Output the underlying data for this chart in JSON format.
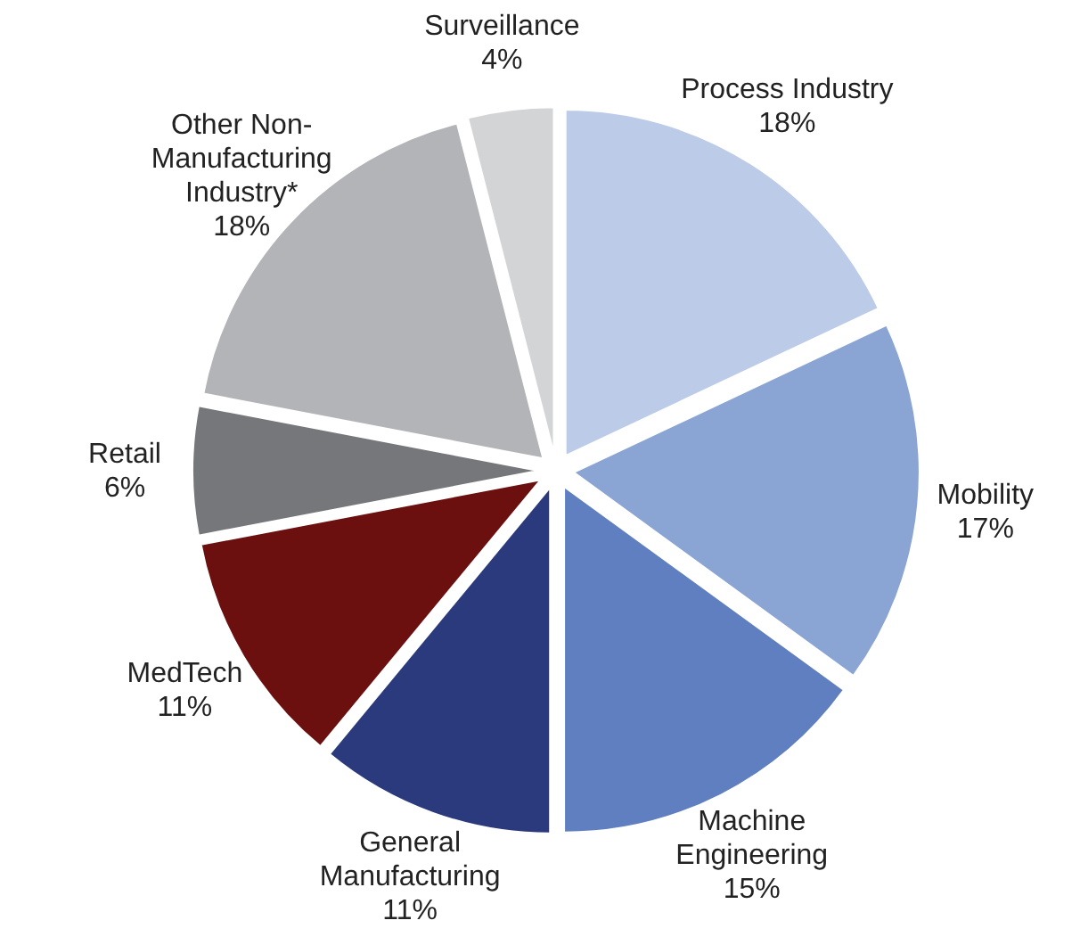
{
  "chart_data": {
    "type": "pie",
    "categories": [
      "Process Industry",
      "Mobility",
      "Machine Engineering",
      "General Manufacturing",
      "MedTech",
      "Retail",
      "Other Non-Manufacturing Industry*",
      "Surveillance"
    ],
    "values": [
      18,
      17,
      15,
      11,
      11,
      6,
      18,
      4
    ],
    "colors": [
      "#bccbe8",
      "#8aa4d3",
      "#5f7fc0",
      "#2b3a7d",
      "#6b0f0f",
      "#76777b",
      "#b2b4b8",
      "#d3d4d6"
    ],
    "value_labels": [
      "18%",
      "17%",
      "15%",
      "11%",
      "11%",
      "6%",
      "18%",
      "4%"
    ]
  }
}
